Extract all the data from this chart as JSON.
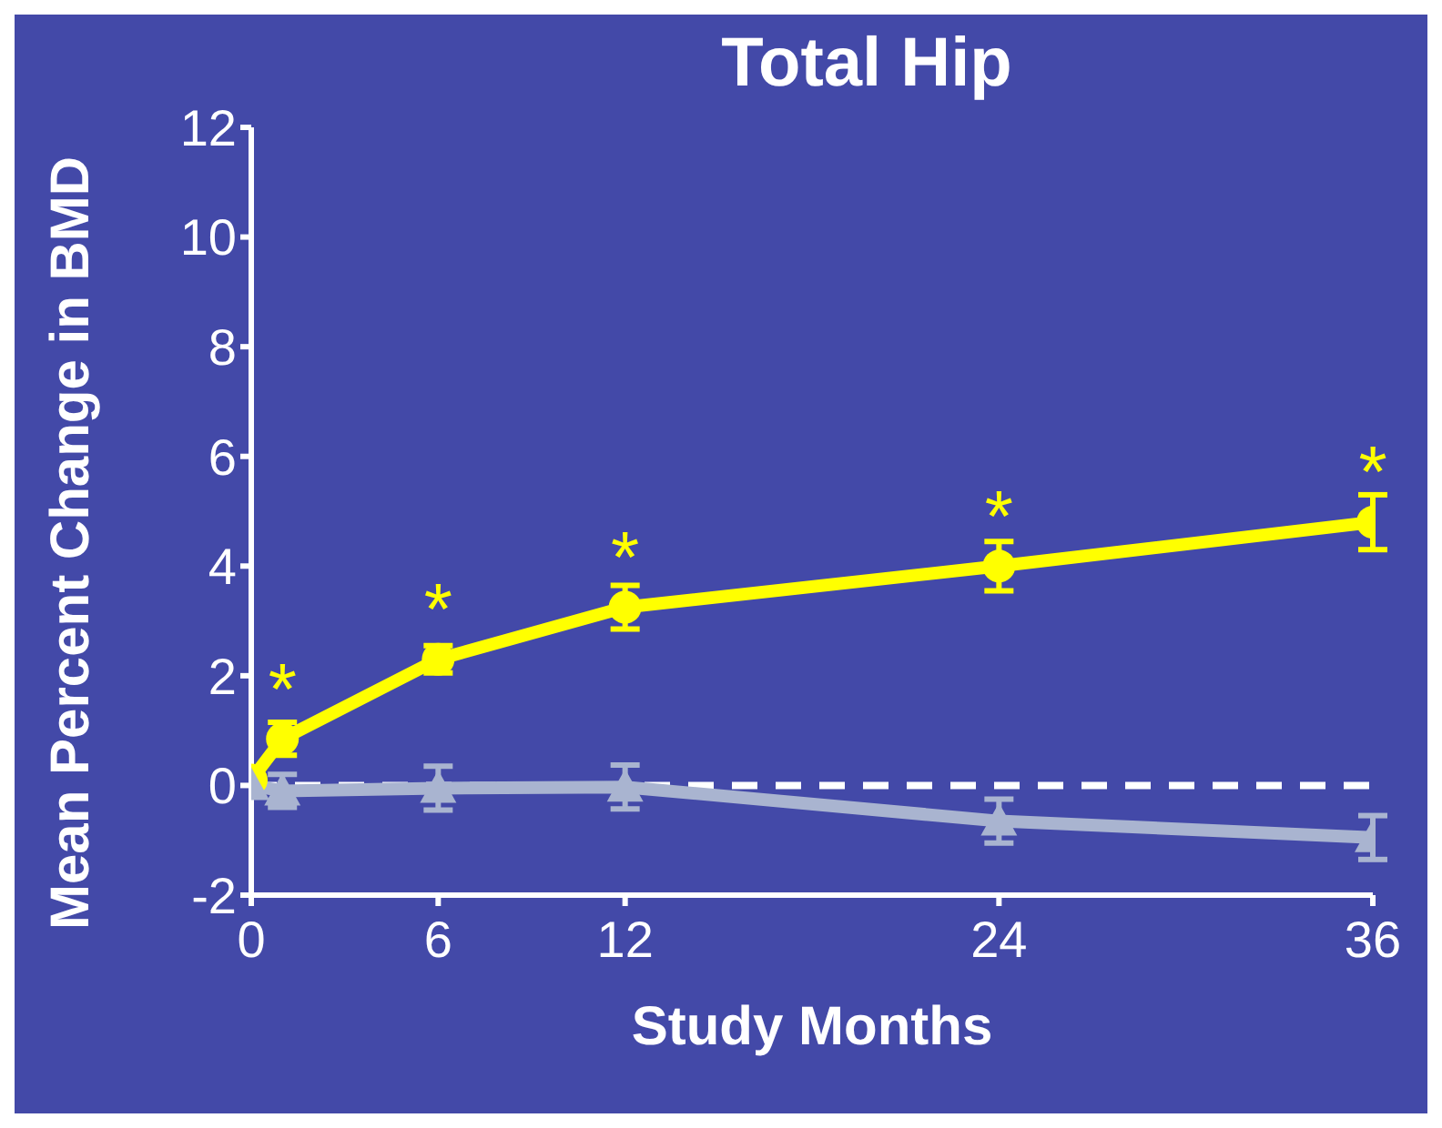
{
  "chart_data": {
    "type": "line",
    "title": "Total Hip",
    "xlabel": "Study Months",
    "ylabel": "Mean Percent Change in BMD",
    "x": [
      0,
      1,
      6,
      12,
      24,
      36
    ],
    "series": [
      {
        "color": "#ffff00",
        "marker": "circle",
        "values": [
          0.1,
          0.85,
          2.3,
          3.25,
          4.0,
          4.8
        ],
        "errors": [
          null,
          0.3,
          0.25,
          0.4,
          0.45,
          0.5
        ]
      },
      {
        "color": "#a9b4d0",
        "marker": "triangle",
        "values": [
          0,
          -0.1,
          -0.05,
          -0.03,
          -0.65,
          -0.95
        ],
        "errors": [
          null,
          0.3,
          0.4,
          0.4,
          0.4,
          0.4
        ]
      }
    ],
    "xlim": [
      0,
      36
    ],
    "xticks": [
      0,
      6,
      12,
      24,
      36
    ],
    "ylim": [
      -2,
      12
    ],
    "yticks": [
      -2,
      0,
      2,
      4,
      6,
      8,
      10,
      12
    ],
    "ref_lines": [
      {
        "axis": "y",
        "value": 0,
        "color": "#ffffff",
        "line_style": "dashed"
      }
    ],
    "annotations": [
      {
        "text": "*",
        "x": 1,
        "y": 0.85
      },
      {
        "text": "*",
        "x": 6,
        "y": 2.3
      },
      {
        "text": "*",
        "x": 12,
        "y": 3.25
      },
      {
        "text": "*",
        "x": 24,
        "y": 4.0
      },
      {
        "text": "*",
        "x": 36,
        "y": 4.8
      }
    ],
    "grid": false
  }
}
